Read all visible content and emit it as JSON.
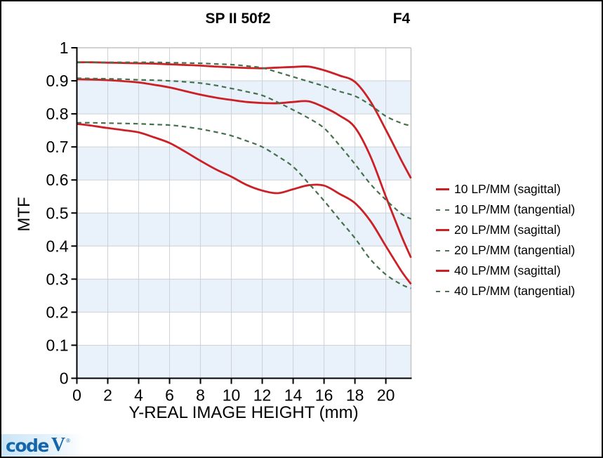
{
  "header": {
    "title": "SP II 50f2",
    "aperture": "F4"
  },
  "logo": {
    "code": "code",
    "v": "V",
    "mark": "®",
    "color": "#1565ab"
  },
  "colors": {
    "sagittal": "#cb2026",
    "tangential": "#44704c",
    "band": "#e9f1fa",
    "grid": "#ccd2d8",
    "frame": "#c4c4c4",
    "axis": "#000000",
    "text": "#000000"
  },
  "chart_data": {
    "type": "line",
    "title": "SP II 50f2",
    "annotation": "F4",
    "xlabel": "Y-REAL IMAGE HEIGHT (mm)",
    "ylabel": "MTF",
    "xlim": [
      0,
      21.63
    ],
    "ylim": [
      0,
      1
    ],
    "x_ticks": [
      0,
      2,
      4,
      6,
      8,
      10,
      12,
      14,
      16,
      18,
      20
    ],
    "y_ticks": [
      0,
      0.1,
      0.2,
      0.3,
      0.4,
      0.5,
      0.6,
      0.7,
      0.8,
      0.9,
      1
    ],
    "grid": true,
    "band_fill": "alternating 0.1 MTF stripes, blue on even tenths",
    "legend_position": "right",
    "x": [
      0,
      1,
      2,
      3,
      4,
      5,
      6,
      7,
      8,
      9,
      10,
      11,
      12,
      13,
      14,
      15,
      16,
      17,
      18,
      19,
      20,
      21,
      21.63
    ],
    "series": [
      {
        "name": "10 LP/MM (sagittal)",
        "style": "solid",
        "color": "#cb2026",
        "values": [
          0.956,
          0.956,
          0.955,
          0.954,
          0.953,
          0.952,
          0.95,
          0.948,
          0.946,
          0.943,
          0.941,
          0.939,
          0.938,
          0.94,
          0.942,
          0.943,
          0.932,
          0.916,
          0.897,
          0.838,
          0.752,
          0.66,
          0.605
        ]
      },
      {
        "name": "10 LP/MM (tangential)",
        "style": "dashed",
        "color": "#44704c",
        "values": [
          0.956,
          0.956,
          0.956,
          0.956,
          0.956,
          0.956,
          0.955,
          0.954,
          0.953,
          0.951,
          0.949,
          0.945,
          0.939,
          0.926,
          0.912,
          0.898,
          0.884,
          0.868,
          0.854,
          0.827,
          0.793,
          0.772,
          0.764
        ]
      },
      {
        "name": "20 LP/MM (sagittal)",
        "style": "solid",
        "color": "#cb2026",
        "values": [
          0.905,
          0.904,
          0.902,
          0.899,
          0.895,
          0.888,
          0.88,
          0.869,
          0.858,
          0.849,
          0.842,
          0.836,
          0.833,
          0.832,
          0.836,
          0.838,
          0.82,
          0.795,
          0.759,
          0.672,
          0.55,
          0.432,
          0.365
        ]
      },
      {
        "name": "20 LP/MM (tangential)",
        "style": "dashed",
        "color": "#44704c",
        "values": [
          0.908,
          0.907,
          0.906,
          0.905,
          0.903,
          0.902,
          0.9,
          0.897,
          0.893,
          0.886,
          0.877,
          0.867,
          0.856,
          0.835,
          0.812,
          0.787,
          0.757,
          0.705,
          0.648,
          0.588,
          0.54,
          0.498,
          0.482
        ]
      },
      {
        "name": "40 LP/MM (sagittal)",
        "style": "solid",
        "color": "#cb2026",
        "values": [
          0.77,
          0.764,
          0.757,
          0.751,
          0.744,
          0.729,
          0.712,
          0.686,
          0.658,
          0.632,
          0.61,
          0.585,
          0.568,
          0.56,
          0.572,
          0.584,
          0.583,
          0.558,
          0.53,
          0.476,
          0.4,
          0.325,
          0.285
        ]
      },
      {
        "name": "40 LP/MM (tangential)",
        "style": "dashed",
        "color": "#44704c",
        "values": [
          0.773,
          0.773,
          0.772,
          0.771,
          0.77,
          0.768,
          0.766,
          0.761,
          0.754,
          0.745,
          0.734,
          0.718,
          0.7,
          0.672,
          0.64,
          0.59,
          0.537,
          0.48,
          0.424,
          0.36,
          0.314,
          0.284,
          0.272
        ]
      }
    ]
  }
}
